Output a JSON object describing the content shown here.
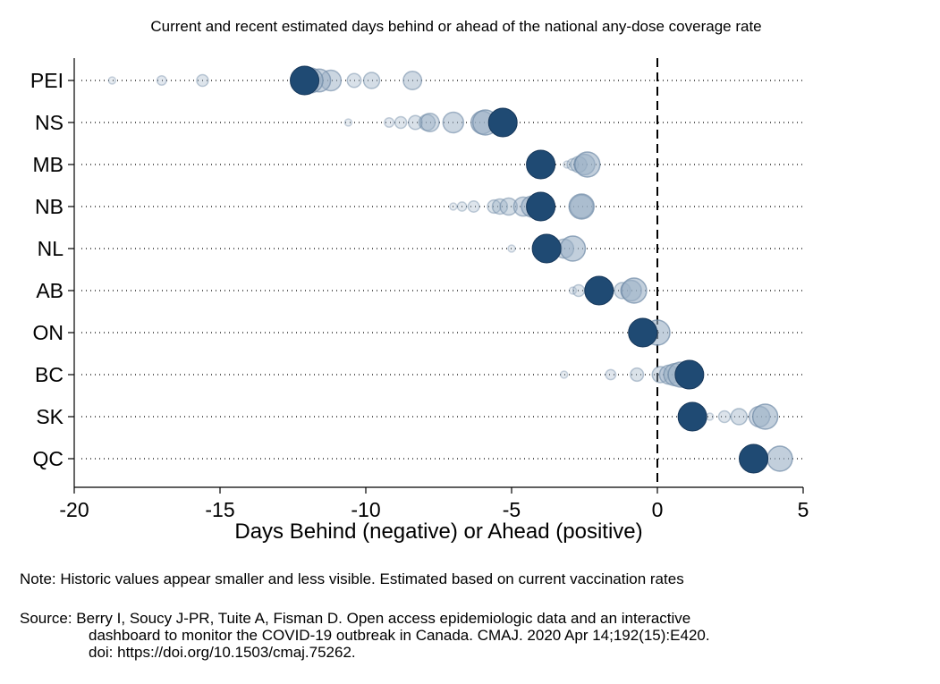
{
  "chart_data": {
    "type": "scatter",
    "title": "Current and recent estimated days behind or ahead of the national any-dose coverage rate",
    "xlabel": "Days Behind (negative) or Ahead (positive)",
    "ylabel": "",
    "xlim": [
      -20,
      5
    ],
    "xticks": [
      -20,
      -15,
      -10,
      -5,
      0,
      5
    ],
    "xtick_labels": [
      "-20",
      "-15",
      "-10",
      "-5",
      "0",
      "5"
    ],
    "reference_line_x": 0,
    "grid": "dotted horizontal lines per category",
    "categories": [
      "PEI",
      "NS",
      "MB",
      "NB",
      "NL",
      "AB",
      "ON",
      "BC",
      "SK",
      "QC"
    ],
    "current_color": "#1f4a73",
    "historic_color": "#9aafc4",
    "series": [
      {
        "category": "PEI",
        "current": -12.1,
        "historic": [
          -18.7,
          -17.0,
          -15.6,
          -10.4,
          -9.8,
          -8.4,
          -11.2,
          -11.6,
          -11.9
        ]
      },
      {
        "category": "NS",
        "current": -5.3,
        "historic": [
          -10.6,
          -9.2,
          -8.8,
          -8.3,
          -7.9,
          -7.8,
          -7.0,
          -6.0,
          -5.9
        ]
      },
      {
        "category": "MB",
        "current": -4.0,
        "historic": [
          -3.1,
          -2.9,
          -2.7,
          -2.5,
          -2.4
        ]
      },
      {
        "category": "NB",
        "current": -4.0,
        "historic": [
          -7.0,
          -6.7,
          -6.3,
          -5.6,
          -5.4,
          -5.1,
          -4.6,
          -4.3,
          -2.6,
          -2.6
        ]
      },
      {
        "category": "NL",
        "current": -3.8,
        "historic": [
          -5.0,
          -3.5,
          -3.2,
          -2.9
        ]
      },
      {
        "category": "AB",
        "current": -2.0,
        "historic": [
          -2.9,
          -2.7,
          -1.2,
          -0.9,
          -0.8
        ]
      },
      {
        "category": "ON",
        "current": -0.5,
        "historic": [
          0.0
        ]
      },
      {
        "category": "BC",
        "current": 1.1,
        "historic": [
          -3.2,
          -1.6,
          -0.7,
          0.1,
          0.4,
          0.6,
          0.8
        ]
      },
      {
        "category": "SK",
        "current": 1.2,
        "historic": [
          1.8,
          2.3,
          2.8,
          3.5,
          3.7
        ]
      },
      {
        "category": "QC",
        "current": 3.3,
        "historic": [
          4.2
        ]
      }
    ]
  },
  "notes": {
    "note": "Note: Historic values appear smaller and less visible. Estimated based on current vaccination rates",
    "source_line1": "Source: Berry I, Soucy J-PR, Tuite A, Fisman D. Open access epidemiologic data and an interactive",
    "source_line2": "dashboard to monitor the COVID-19 outbreak in Canada. CMAJ. 2020 Apr 14;192(15):E420.",
    "source_line3": "doi: https://doi.org/10.1503/cmaj.75262."
  }
}
